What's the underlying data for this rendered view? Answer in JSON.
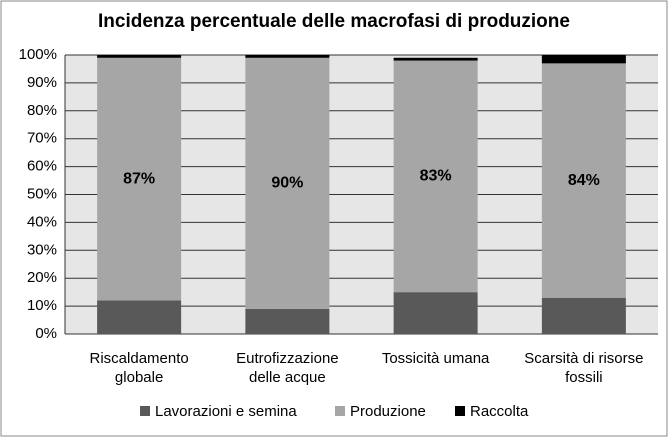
{
  "chart_data": {
    "type": "stacked_bar",
    "title": "Incidenza percentuale delle macrofasi di produzione",
    "categories": [
      "Riscaldamento\nglobale",
      "Eutrofizzazione\ndelle acque",
      "Tossicità umana",
      "Scarsità di risorse\nfossili"
    ],
    "series": [
      {
        "name": "Lavorazioni e semina",
        "color": "#595959",
        "values": [
          12,
          9,
          15,
          13
        ]
      },
      {
        "name": "Produzione",
        "color": "#a6a6a6",
        "values": [
          87,
          90,
          83,
          84
        ],
        "value_labels": [
          "87%",
          "90%",
          "83%",
          "84%"
        ]
      },
      {
        "name": "Raccolta",
        "color": "#000000",
        "values": [
          1,
          1,
          1,
          3
        ]
      }
    ],
    "ylim": [
      0,
      100
    ],
    "yticks": [
      {
        "value": 0,
        "label": "0%"
      },
      {
        "value": 10,
        "label": "10%"
      },
      {
        "value": 20,
        "label": "20%"
      },
      {
        "value": 30,
        "label": "30%"
      },
      {
        "value": 40,
        "label": "40%"
      },
      {
        "value": 50,
        "label": "50%"
      },
      {
        "value": 60,
        "label": "60%"
      },
      {
        "value": 70,
        "label": "70%"
      },
      {
        "value": 80,
        "label": "80%"
      },
      {
        "value": 90,
        "label": "90%"
      },
      {
        "value": 100,
        "label": "100%"
      }
    ],
    "grid": true,
    "legend": "bottom"
  }
}
